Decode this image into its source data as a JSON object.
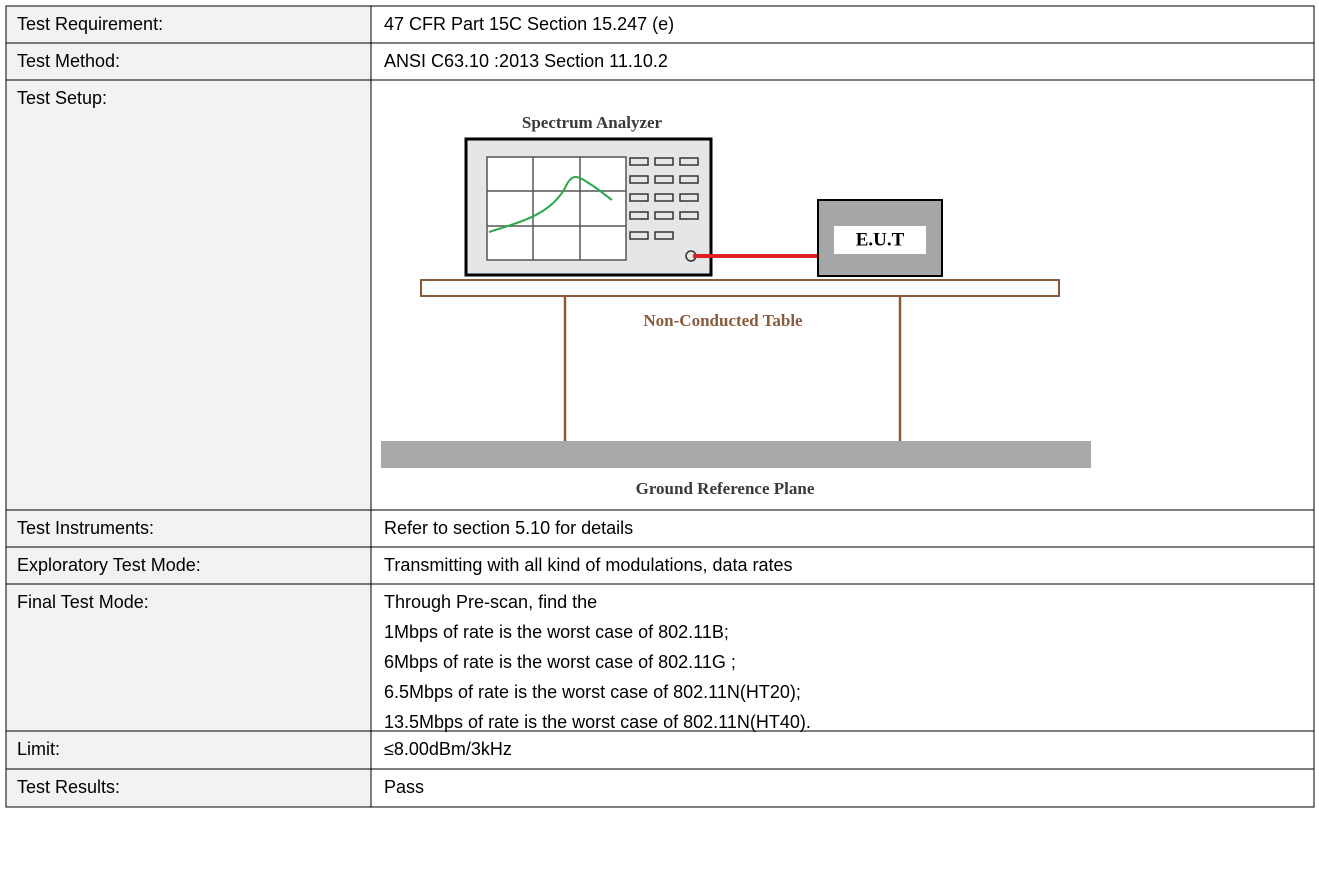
{
  "table": {
    "rows": [
      {
        "label": "Test Requirement:",
        "lines": [
          "47 CFR Part 15C Section 15.247 (e)"
        ]
      },
      {
        "label": "Test Method:",
        "lines": [
          "ANSI C63.10 :2013 Section 11.10.2"
        ]
      },
      {
        "label": "Test Setup:",
        "lines": []
      },
      {
        "label": "Test Instruments:",
        "lines": [
          "Refer to section 5.10 for details"
        ]
      },
      {
        "label": "Exploratory Test Mode:",
        "lines": [
          "Transmitting with all kind of modulations, data rates"
        ]
      },
      {
        "label": "Final Test Mode:",
        "lines": [
          "Through Pre-scan, find the",
          "1Mbps of rate is the worst case of 802.11B;",
          "6Mbps of rate is the worst case of 802.11G ;",
          "6.5Mbps of rate is the worst case of 802.11N(HT20);",
          "13.5Mbps of rate is the worst case of 802.11N(HT40)."
        ]
      },
      {
        "label": "Limit:",
        "lines": [
          "≤8.00dBm/3kHz"
        ]
      },
      {
        "label": "Test Results:",
        "lines": [
          "Pass"
        ]
      }
    ]
  },
  "test_setup": {
    "analyzer_label": "Spectrum Analyzer",
    "eut_label": "E.U.T",
    "table_label": "Non-Conducted Table",
    "ground_label": "Ground Reference Plane"
  }
}
